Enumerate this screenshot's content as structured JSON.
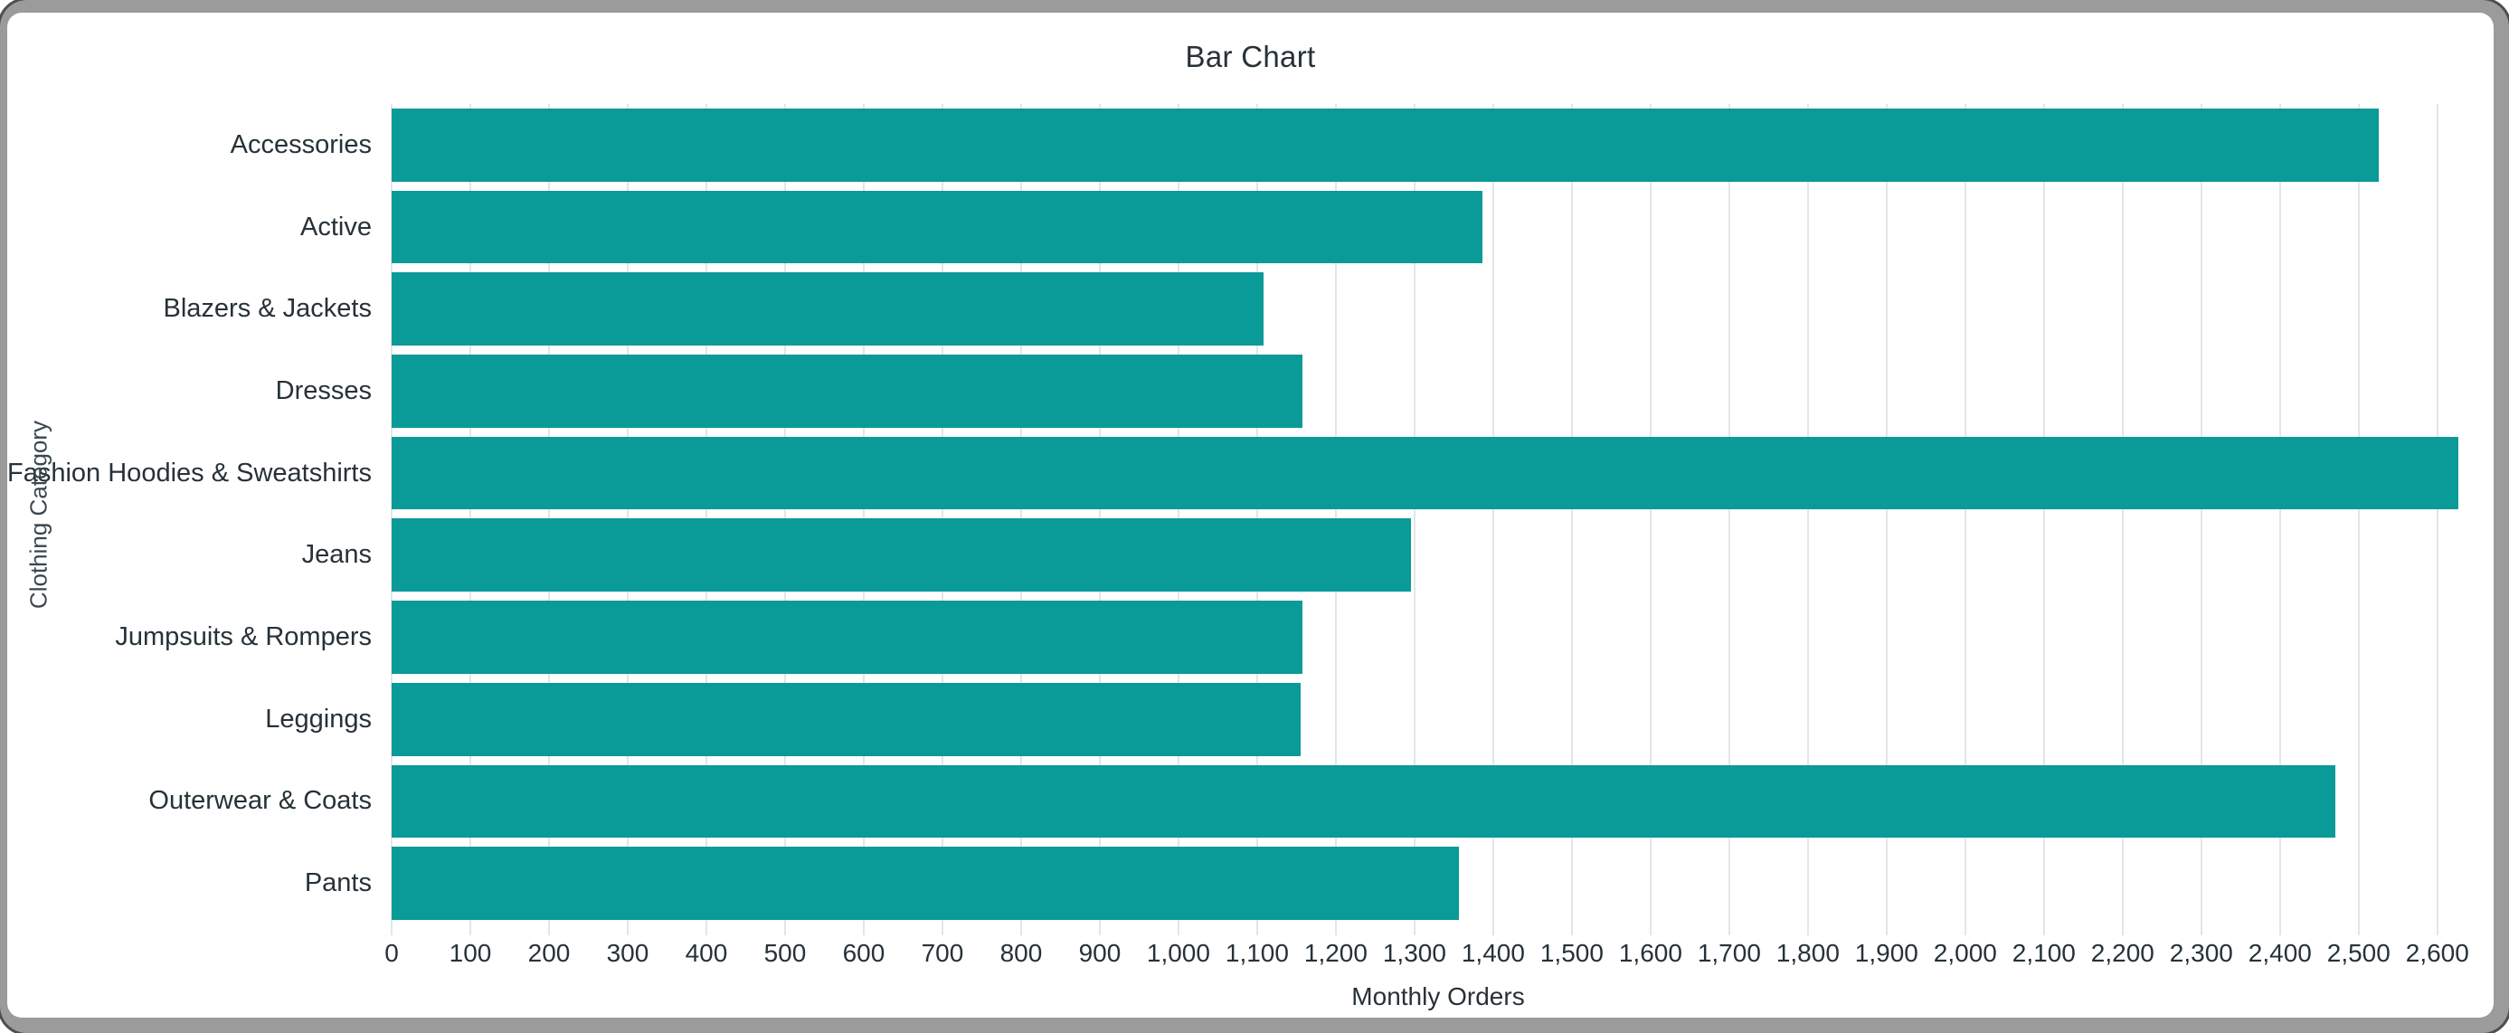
{
  "window": {
    "frame_color": "#9b9b9b",
    "background_color": "#ffffff"
  },
  "chart_data": {
    "type": "bar",
    "orientation": "horizontal",
    "title": "Bar Chart",
    "xlabel": "Monthly Orders",
    "ylabel": "Clothing Category",
    "categories": [
      "Accessories",
      "Active",
      "Blazers & Jackets",
      "Dresses",
      "Fashion Hoodies & Sweatshirts",
      "Jeans",
      "Jumpsuits & Rompers",
      "Leggings",
      "Outerwear & Coats",
      "Pants"
    ],
    "values": [
      2525,
      1386,
      1108,
      1157,
      2627,
      1296,
      1157,
      1155,
      2470,
      1356
    ],
    "xlim": [
      0,
      2660
    ],
    "xtick_interval": 100,
    "xtick_max": 2600,
    "grid": "vertical",
    "legend": "none",
    "bar_color": "#0a9a97",
    "text_color": "#263238",
    "gridline_color": "#e3e5e6"
  }
}
